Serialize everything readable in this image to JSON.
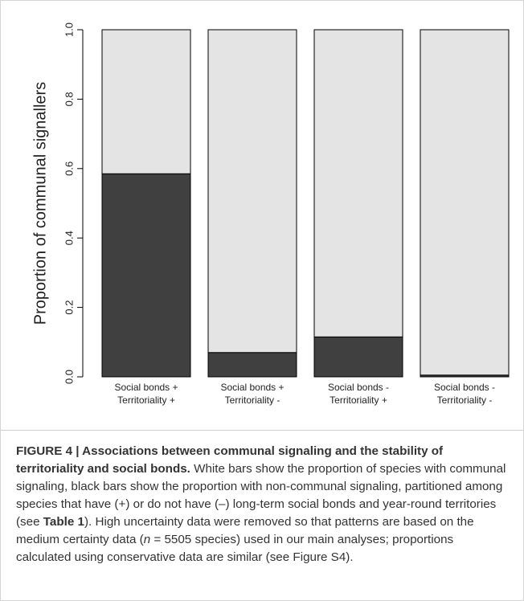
{
  "chart_data": {
    "type": "stacked_bar",
    "ylabel": "Proportion of communal signallers",
    "categories": [
      [
        "Social bonds +",
        "Territoriality +"
      ],
      [
        "Social bonds +",
        "Territoriality -"
      ],
      [
        "Social bonds -",
        "Territoriality +"
      ],
      [
        "Social bonds -",
        "Territoriality -"
      ]
    ],
    "series": [
      {
        "color": "#404040",
        "values": [
          0.585,
          0.07,
          0.115,
          0.005
        ]
      },
      {
        "color": "#e4e4e4",
        "values": [
          0.415,
          0.93,
          0.885,
          0.995
        ]
      }
    ],
    "ylim": [
      0,
      1
    ],
    "yticks": [
      {
        "value": 0,
        "label": "0.0"
      },
      0.2,
      0.4,
      0.6,
      0.8,
      {
        "value": 1,
        "label": "1.0"
      }
    ]
  },
  "caption": {
    "segments": [
      "FIGURE 4 | Associations between communal signaling and the stability of territoriality and social bonds.",
      " White bars show the proportion of species with communal signaling, black bars show the proportion with non-communal signaling, partitioned among species that have (+) or do not have (–) long-term social bonds and year-round territories (see ",
      "Table 1",
      "). High uncertainty data were removed so that patterns are based on the medium certainty data (",
      "n",
      " = 5505 species) used in our main analyses; proportions calculated using conservative data are similar (see Figure S4)."
    ]
  }
}
